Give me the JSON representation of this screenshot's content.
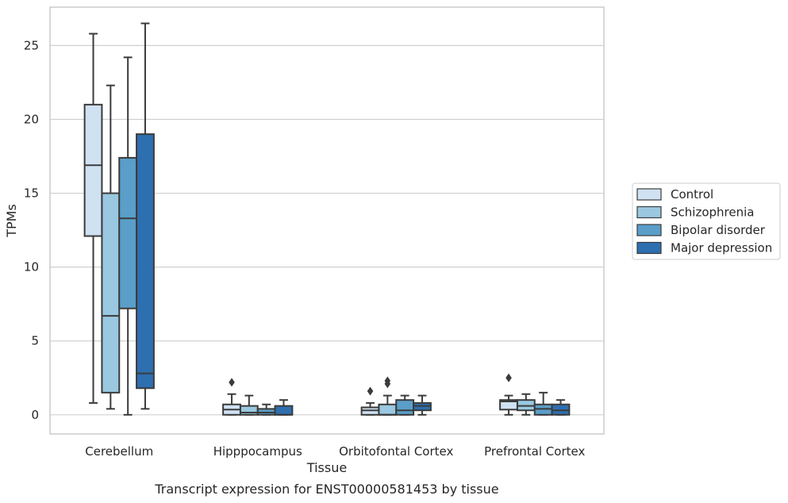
{
  "chart_data": {
    "type": "boxplot",
    "title": "Transcript expression for ENST00000581453 by tissue",
    "xlabel": "Tissue",
    "ylabel": "TPMs",
    "ylim": [
      -1.3,
      27.6
    ],
    "yticks": [
      0,
      5,
      10,
      15,
      20,
      25
    ],
    "grid": "horizontal",
    "legend_position": "right",
    "categories": [
      "Cerebellum",
      "Hipppocampus",
      "Orbitofontal Cortex",
      "Prefrontal Cortex"
    ],
    "series": [
      {
        "name": "Control",
        "color": "#d0e1f2",
        "boxes": [
          {
            "whisker_low": 0.8,
            "q1": 12.1,
            "median": 16.9,
            "q3": 21.0,
            "whisker_high": 25.8,
            "outliers": []
          },
          {
            "whisker_low": 0.0,
            "q1": 0.0,
            "median": 0.35,
            "q3": 0.7,
            "whisker_high": 1.4,
            "outliers": [
              2.2
            ]
          },
          {
            "whisker_low": 0.0,
            "q1": 0.0,
            "median": 0.3,
            "q3": 0.5,
            "whisker_high": 0.8,
            "outliers": [
              1.6
            ]
          },
          {
            "whisker_low": 0.0,
            "q1": 0.35,
            "median": 0.9,
            "q3": 1.0,
            "whisker_high": 1.3,
            "outliers": [
              2.5
            ]
          }
        ]
      },
      {
        "name": "Schizophrenia",
        "color": "#9ac8e0",
        "boxes": [
          {
            "whisker_low": 0.4,
            "q1": 1.5,
            "median": 6.7,
            "q3": 15.0,
            "whisker_high": 22.3,
            "outliers": []
          },
          {
            "whisker_low": 0.0,
            "q1": 0.0,
            "median": 0.15,
            "q3": 0.6,
            "whisker_high": 1.3,
            "outliers": []
          },
          {
            "whisker_low": 0.0,
            "q1": 0.0,
            "median": 0.0,
            "q3": 0.7,
            "whisker_high": 1.3,
            "outliers": [
              2.1,
              2.3
            ]
          },
          {
            "whisker_low": 0.0,
            "q1": 0.3,
            "median": 0.6,
            "q3": 1.0,
            "whisker_high": 1.4,
            "outliers": []
          }
        ]
      },
      {
        "name": "Bipolar disorder",
        "color": "#5a9ec9",
        "boxes": [
          {
            "whisker_low": 0.0,
            "q1": 7.2,
            "median": 13.3,
            "q3": 17.4,
            "whisker_high": 24.2,
            "outliers": []
          },
          {
            "whisker_low": 0.0,
            "q1": 0.0,
            "median": 0.15,
            "q3": 0.4,
            "whisker_high": 0.7,
            "outliers": []
          },
          {
            "whisker_low": 0.0,
            "q1": 0.0,
            "median": 0.3,
            "q3": 1.0,
            "whisker_high": 1.3,
            "outliers": []
          },
          {
            "whisker_low": 0.0,
            "q1": 0.0,
            "median": 0.4,
            "q3": 0.7,
            "whisker_high": 1.5,
            "outliers": []
          }
        ]
      },
      {
        "name": "Major depression",
        "color": "#2d6faf",
        "boxes": [
          {
            "whisker_low": 0.4,
            "q1": 1.8,
            "median": 2.8,
            "q3": 19.0,
            "whisker_high": 26.5,
            "outliers": []
          },
          {
            "whisker_low": 0.0,
            "q1": 0.0,
            "median": 0.0,
            "q3": 0.6,
            "whisker_high": 1.0,
            "outliers": []
          },
          {
            "whisker_low": 0.0,
            "q1": 0.3,
            "median": 0.6,
            "q3": 0.8,
            "whisker_high": 1.3,
            "outliers": []
          },
          {
            "whisker_low": 0.0,
            "q1": 0.0,
            "median": 0.3,
            "q3": 0.7,
            "whisker_high": 1.0,
            "outliers": []
          }
        ]
      }
    ]
  }
}
